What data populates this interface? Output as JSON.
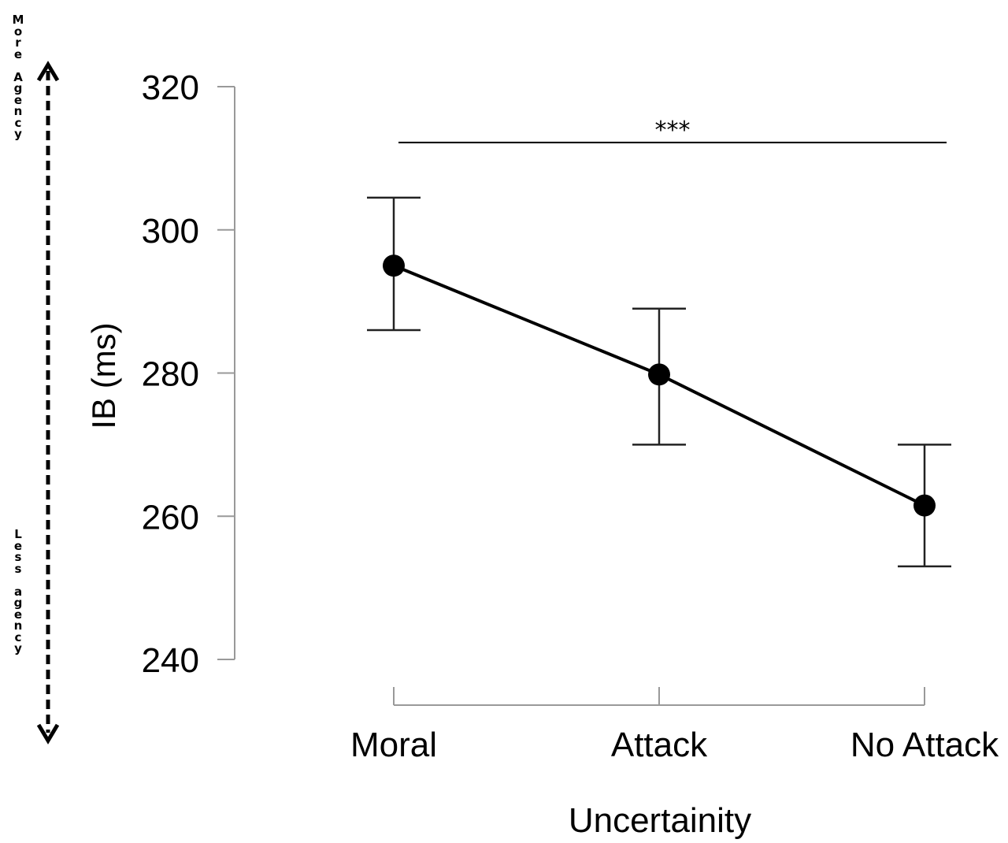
{
  "agency_scale": {
    "more_label": "More Agency",
    "less_label": "Less agency"
  },
  "chart_data": {
    "type": "line",
    "categories": [
      "Moral",
      "Attack",
      "No Attack"
    ],
    "values": [
      295,
      279.8,
      261.5
    ],
    "error_upper": [
      304.5,
      289,
      270
    ],
    "error_lower": [
      286,
      270,
      253
    ],
    "xlabel": "Uncertainity",
    "ylabel": "IB (ms)",
    "ylim": [
      240,
      320
    ],
    "yticks": [
      240,
      260,
      280,
      300,
      320
    ],
    "significance": {
      "label": "***",
      "value": 312.2,
      "from_category": "Moral",
      "to_category": "No Attack"
    },
    "grid": false,
    "legend": "none"
  }
}
